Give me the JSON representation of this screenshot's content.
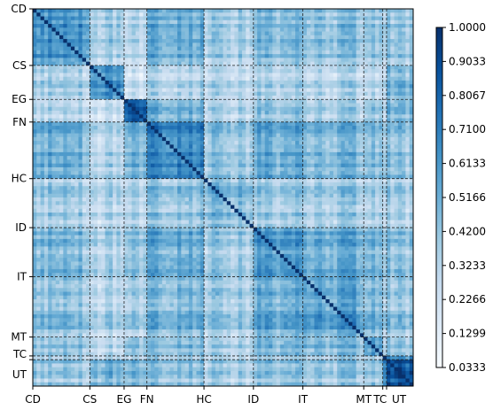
{
  "chart_data": {
    "type": "heatmap",
    "title": "",
    "xlabel": "",
    "ylabel": "",
    "grid": false,
    "matrix_size": 100,
    "categories": [
      "CD",
      "CS",
      "EG",
      "FN",
      "HC",
      "ID",
      "IT",
      "MT",
      "TC",
      "UT"
    ],
    "category_bounds": [
      {
        "name": "CD",
        "start": 0,
        "end": 15
      },
      {
        "name": "CS",
        "start": 15,
        "end": 24
      },
      {
        "name": "EG",
        "start": 24,
        "end": 30
      },
      {
        "name": "FN",
        "start": 30,
        "end": 45
      },
      {
        "name": "HC",
        "start": 45,
        "end": 58
      },
      {
        "name": "ID",
        "start": 58,
        "end": 71
      },
      {
        "name": "IT",
        "start": 71,
        "end": 87
      },
      {
        "name": "MT",
        "start": 87,
        "end": 92
      },
      {
        "name": "TC",
        "start": 92,
        "end": 93
      },
      {
        "name": "UT",
        "start": 93,
        "end": 100
      }
    ],
    "block_means": [
      [
        0.62,
        0.35,
        0.3,
        0.5,
        0.35,
        0.45,
        0.42,
        0.4,
        0.35,
        0.38
      ],
      [
        0.35,
        0.62,
        0.22,
        0.3,
        0.28,
        0.32,
        0.3,
        0.28,
        0.3,
        0.45
      ],
      [
        0.3,
        0.22,
        0.85,
        0.48,
        0.3,
        0.4,
        0.35,
        0.4,
        0.3,
        0.45
      ],
      [
        0.5,
        0.3,
        0.48,
        0.65,
        0.38,
        0.5,
        0.45,
        0.42,
        0.38,
        0.4
      ],
      [
        0.35,
        0.28,
        0.3,
        0.38,
        0.42,
        0.35,
        0.35,
        0.32,
        0.3,
        0.32
      ],
      [
        0.45,
        0.32,
        0.4,
        0.5,
        0.35,
        0.58,
        0.5,
        0.45,
        0.38,
        0.4
      ],
      [
        0.42,
        0.3,
        0.35,
        0.45,
        0.35,
        0.5,
        0.55,
        0.45,
        0.36,
        0.38
      ],
      [
        0.4,
        0.28,
        0.4,
        0.42,
        0.32,
        0.45,
        0.45,
        0.55,
        0.35,
        0.38
      ],
      [
        0.35,
        0.3,
        0.3,
        0.38,
        0.3,
        0.38,
        0.36,
        0.35,
        0.7,
        0.65
      ],
      [
        0.38,
        0.45,
        0.45,
        0.4,
        0.32,
        0.4,
        0.38,
        0.38,
        0.65,
        0.85
      ]
    ],
    "diagonal_value": 1.0,
    "colormap": "Blues",
    "colorbar": {
      "min": 0.0333,
      "max": 1.0,
      "ticks": [
        "1.0000",
        "0.9033",
        "0.8067",
        "0.7100",
        "0.6133",
        "0.5166",
        "0.4200",
        "0.3233",
        "0.2266",
        "0.1299",
        "0.0333"
      ]
    },
    "colors": {
      "low": "#f7fbff",
      "high": "#08306b"
    }
  }
}
